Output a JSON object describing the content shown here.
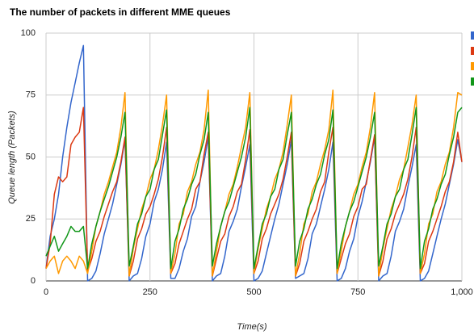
{
  "chart_data": {
    "type": "line",
    "title": "The number of packets in different MME queues",
    "xlabel": "Time(s)",
    "ylabel": "Queue length (Packets)",
    "xlim": [
      0,
      1000
    ],
    "ylim": [
      0,
      100
    ],
    "xticks": [
      0,
      250,
      500,
      750,
      {
        "value": 1000,
        "label": "1,000"
      }
    ],
    "yticks": [
      0,
      25,
      50,
      75,
      100
    ],
    "grid": true,
    "x": [
      0,
      10,
      20,
      30,
      40,
      50,
      60,
      70,
      80,
      90,
      100,
      110,
      120,
      130,
      140,
      150,
      160,
      170,
      180,
      190,
      200,
      210,
      220,
      230,
      240,
      250,
      260,
      270,
      280,
      290,
      300,
      310,
      320,
      330,
      340,
      350,
      360,
      370,
      380,
      390,
      400,
      410,
      420,
      430,
      440,
      450,
      460,
      470,
      480,
      490,
      500,
      510,
      520,
      530,
      540,
      550,
      560,
      570,
      580,
      590,
      600,
      610,
      620,
      630,
      640,
      650,
      660,
      670,
      680,
      690,
      700,
      710,
      720,
      730,
      740,
      750,
      760,
      770,
      780,
      790,
      800,
      810,
      820,
      830,
      840,
      850,
      860,
      870,
      880,
      890,
      900,
      910,
      920,
      930,
      940,
      950,
      960,
      970,
      980,
      990,
      1000
    ],
    "series": [
      {
        "color": "#3366cc",
        "values": [
          5,
          18,
          25,
          35,
          50,
          62,
          72,
          80,
          88,
          95,
          0,
          1,
          4,
          11,
          19,
          25,
          31,
          39,
          47,
          57,
          0,
          2,
          3,
          9,
          18,
          23,
          32,
          37,
          45,
          56,
          1,
          1,
          5,
          12,
          17,
          26,
          30,
          40,
          48,
          58,
          0,
          2,
          3,
          10,
          20,
          24,
          29,
          38,
          46,
          55,
          0,
          1,
          4,
          11,
          18,
          25,
          31,
          39,
          47,
          57,
          1,
          2,
          3,
          9,
          19,
          23,
          30,
          37,
          45,
          56,
          0,
          1,
          5,
          12,
          17,
          26,
          32,
          40,
          48,
          58,
          0,
          2,
          3,
          10,
          20,
          24,
          29,
          38,
          46,
          55,
          0,
          1,
          4,
          11,
          18,
          25,
          31,
          39,
          47,
          57,
          48
        ]
      },
      {
        "color": "#dc3912",
        "values": [
          5,
          15,
          35,
          42,
          40,
          42,
          55,
          58,
          60,
          70,
          4,
          9,
          16,
          20,
          26,
          31,
          36,
          40,
          48,
          58,
          2,
          8,
          17,
          21,
          27,
          30,
          35,
          41,
          50,
          62,
          3,
          7,
          15,
          20,
          25,
          29,
          37,
          40,
          51,
          60,
          2,
          9,
          16,
          19,
          26,
          30,
          36,
          39,
          49,
          61,
          3,
          8,
          17,
          21,
          27,
          31,
          35,
          41,
          50,
          60,
          2,
          7,
          16,
          20,
          25,
          29,
          36,
          40,
          52,
          62,
          3,
          9,
          15,
          19,
          26,
          30,
          37,
          39,
          49,
          59,
          2,
          8,
          17,
          21,
          27,
          31,
          35,
          41,
          50,
          62,
          3,
          7,
          16,
          20,
          25,
          30,
          36,
          40,
          48,
          60,
          48
        ]
      },
      {
        "color": "#ff9900",
        "values": [
          5,
          8,
          10,
          3,
          8,
          10,
          8,
          5,
          10,
          8,
          3,
          12,
          22,
          28,
          35,
          40,
          46,
          52,
          62,
          76,
          2,
          13,
          21,
          29,
          34,
          41,
          45,
          53,
          63,
          75,
          3,
          11,
          23,
          27,
          36,
          40,
          47,
          52,
          61,
          77,
          2,
          12,
          22,
          28,
          35,
          39,
          46,
          54,
          62,
          76,
          3,
          13,
          21,
          29,
          34,
          41,
          45,
          52,
          63,
          75,
          2,
          11,
          23,
          27,
          36,
          40,
          47,
          53,
          61,
          77,
          3,
          12,
          22,
          28,
          35,
          39,
          46,
          52,
          62,
          76,
          2,
          13,
          21,
          29,
          34,
          41,
          45,
          54,
          63,
          75,
          3,
          11,
          23,
          27,
          36,
          40,
          47,
          52,
          62,
          76,
          75
        ]
      },
      {
        "color": "#109618",
        "values": [
          10,
          14,
          18,
          12,
          15,
          18,
          22,
          20,
          20,
          22,
          5,
          15,
          22,
          28,
          33,
          38,
          44,
          50,
          58,
          68,
          6,
          14,
          23,
          27,
          34,
          37,
          45,
          49,
          59,
          69,
          5,
          16,
          21,
          29,
          33,
          39,
          43,
          51,
          57,
          68,
          6,
          15,
          22,
          28,
          32,
          38,
          44,
          50,
          58,
          70,
          5,
          14,
          23,
          27,
          34,
          37,
          45,
          49,
          59,
          68,
          6,
          16,
          21,
          29,
          33,
          39,
          43,
          51,
          57,
          69,
          5,
          15,
          22,
          28,
          32,
          38,
          44,
          50,
          58,
          68,
          6,
          14,
          23,
          27,
          34,
          37,
          45,
          49,
          59,
          70,
          5,
          16,
          21,
          29,
          33,
          39,
          43,
          51,
          58,
          68,
          70
        ]
      }
    ]
  }
}
